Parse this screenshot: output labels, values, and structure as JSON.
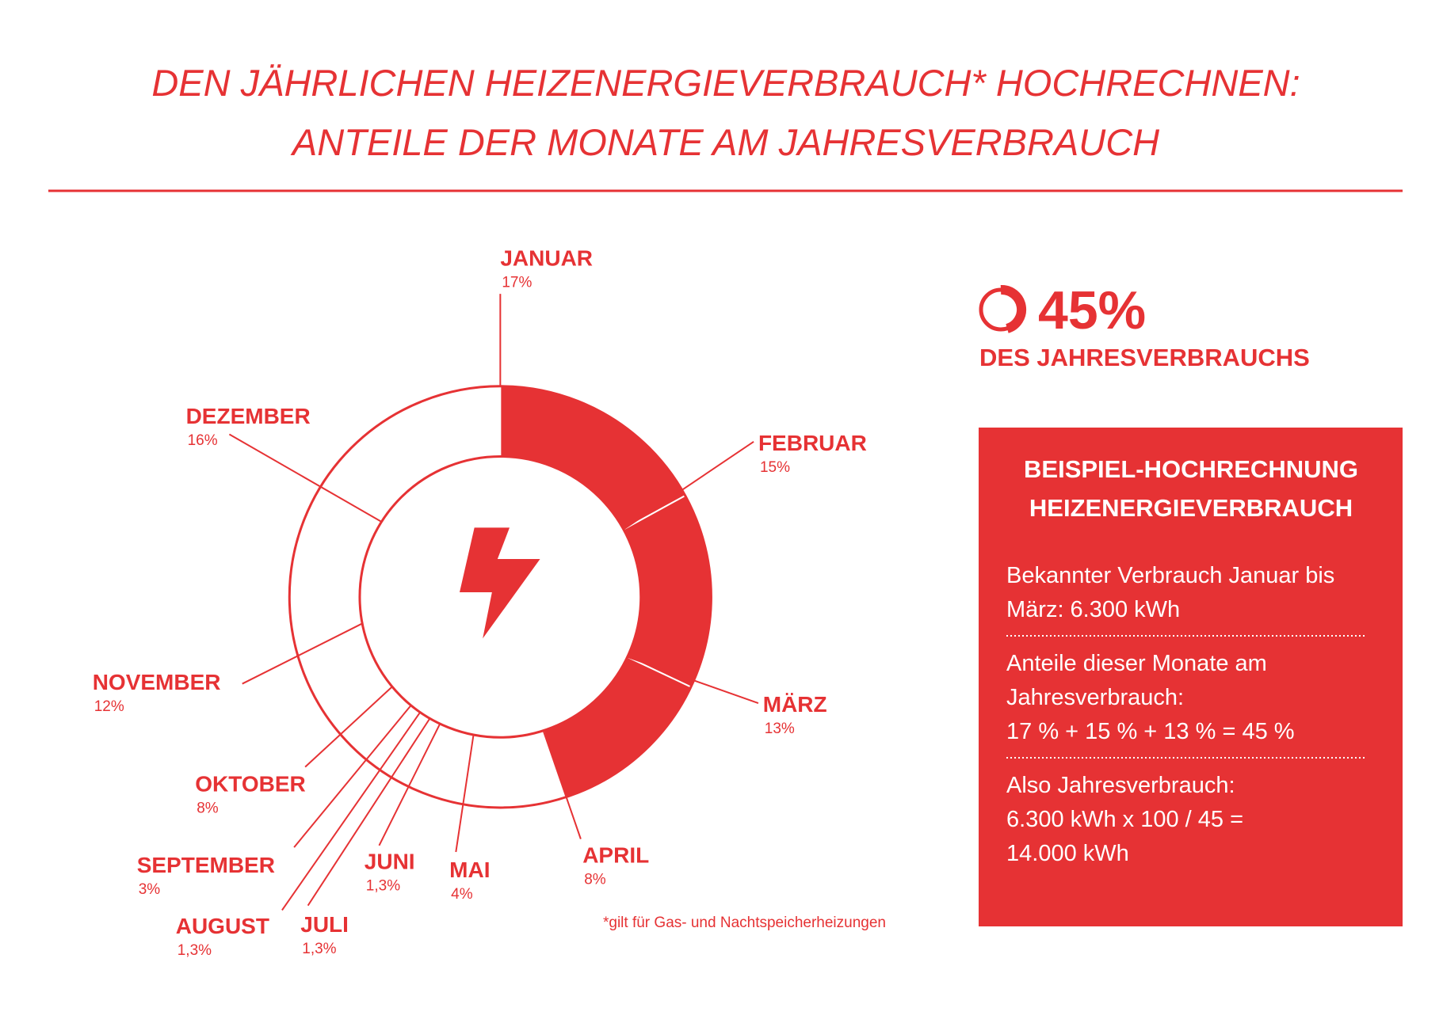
{
  "chart_data": {
    "type": "donut",
    "title": "DEN JÄHRLICHEN HEIZENERGIEVERBRAUCH* HOCHRECHNEN:",
    "subtitle": "ANTEILE DER MONATE AM JAHRESVERBRAUCH",
    "categories": [
      "JANUAR",
      "FEBRUAR",
      "MÄRZ",
      "APRIL",
      "MAI",
      "JUNI",
      "JULI",
      "AUGUST",
      "SEPTEMBER",
      "OKTOBER",
      "NOVEMBER",
      "DEZEMBER"
    ],
    "values": [
      17,
      15,
      13,
      8,
      4,
      1.3,
      1.3,
      1.3,
      3,
      8,
      12,
      16
    ],
    "value_labels": [
      "17%",
      "15%",
      "13%",
      "8%",
      "4%",
      "1,3%",
      "1,3%",
      "1,3%",
      "3%",
      "8%",
      "12%",
      "16%"
    ],
    "colors": [
      "#e63234",
      "#e63234",
      "#e63234",
      "#ffffff",
      "#ffffff",
      "#ffffff",
      "#ffffff",
      "#ffffff",
      "#ffffff",
      "#ffffff",
      "#ffffff",
      "#ffffff"
    ],
    "footnote": "*gilt für Gas- und Nachtspeicherheizungen"
  },
  "highlight": {
    "value": "45%",
    "label": "DES JAHRESVERBRAUCHS"
  },
  "example_box": {
    "title": [
      "BEISPIEL-HOCHRECHNUNG",
      "HEIZENERGIEVERBRAUCH"
    ],
    "paragraphs": [
      [
        "Bekannter Verbrauch Januar bis",
        "März:  6.300 kWh"
      ],
      [
        "Anteile dieser Monate am",
        "Jahresverbrauch:",
        "17 %  + 15 % + 13 % = 45 %"
      ],
      [
        "Also Jahresverbrauch:",
        "6.300 kWh x 100 / 45 =",
        "14.000 kWh"
      ]
    ]
  }
}
